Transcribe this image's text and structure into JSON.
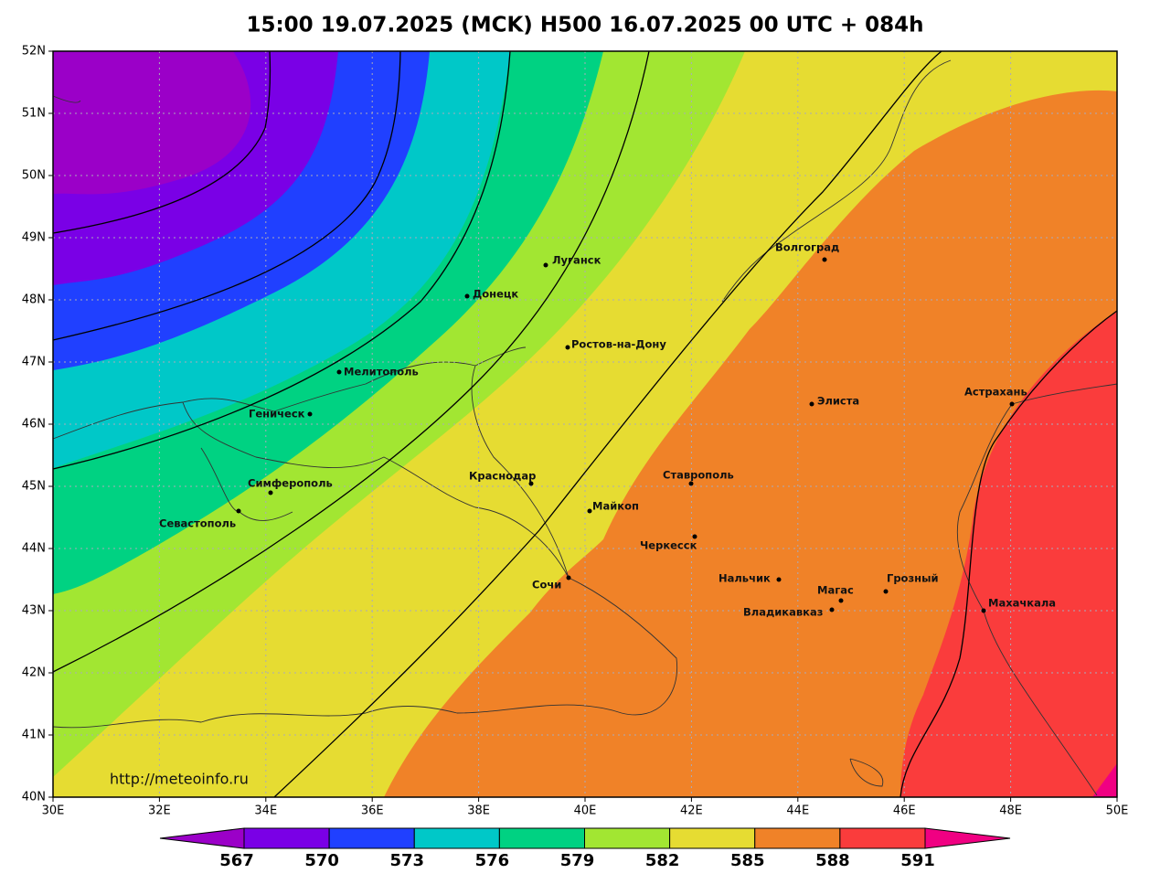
{
  "header": {
    "title": "15:00 19.07.2025 (MCK) H500  16.07.2025 00 UTC + 084h"
  },
  "map": {
    "lon_ticks": [
      {
        "value": 30,
        "label": "30E"
      },
      {
        "value": 32,
        "label": "32E"
      },
      {
        "value": 34,
        "label": "34E"
      },
      {
        "value": 36,
        "label": "36E"
      },
      {
        "value": 38,
        "label": "38E"
      },
      {
        "value": 40,
        "label": "40E"
      },
      {
        "value": 42,
        "label": "42E"
      },
      {
        "value": 44,
        "label": "44E"
      },
      {
        "value": 46,
        "label": "46E"
      },
      {
        "value": 48,
        "label": "48E"
      },
      {
        "value": 50,
        "label": "50E"
      }
    ],
    "lat_ticks": [
      {
        "value": 40,
        "label": "40N"
      },
      {
        "value": 41,
        "label": "41N"
      },
      {
        "value": 42,
        "label": "42N"
      },
      {
        "value": 43,
        "label": "43N"
      },
      {
        "value": 44,
        "label": "44N"
      },
      {
        "value": 45,
        "label": "45N"
      },
      {
        "value": 46,
        "label": "46N"
      },
      {
        "value": 47,
        "label": "47N"
      },
      {
        "value": 48,
        "label": "48N"
      },
      {
        "value": 49,
        "label": "49N"
      },
      {
        "value": 50,
        "label": "50N"
      },
      {
        "value": 51,
        "label": "51N"
      },
      {
        "value": 52,
        "label": "52N"
      }
    ],
    "lonlim": [
      30,
      50
    ],
    "latlim": [
      40,
      52
    ],
    "cities": [
      "Луганск",
      "Донецк",
      "Ростов-на-Дону",
      "Мелитополь",
      "Геническ",
      "Симферополь",
      "Севастополь",
      "Краснодар",
      "Майкоп",
      "Сочи",
      "Ставрополь",
      "Черкесск",
      "Нальчик",
      "Магас",
      "Владикавказ",
      "Грозный",
      "Махачкала",
      "Элиста",
      "Астрахань",
      "Волгоград"
    ],
    "url": "http://meteoinfo.ru"
  },
  "colorbar": {
    "levels": [
      567,
      570,
      573,
      576,
      579,
      582,
      585,
      588,
      591
    ],
    "colors": [
      "#9b00c8",
      "#7a00e6",
      "#2040ff",
      "#00c8c8",
      "#00d282",
      "#a2e632",
      "#e6dc32",
      "#f08228",
      "#fa3c3c",
      "#f00082"
    ]
  }
}
